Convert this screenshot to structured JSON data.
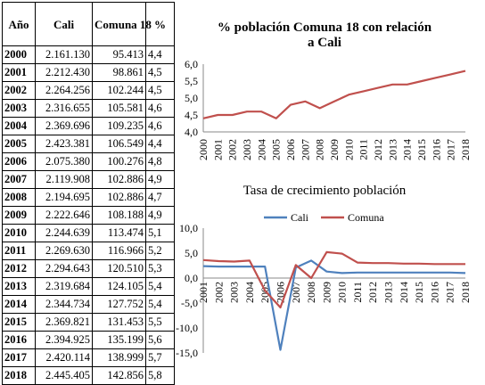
{
  "table": {
    "headers": [
      "Año",
      "Cali",
      "Comuna 18",
      "%"
    ],
    "rows": [
      [
        "2000",
        "2.161.130",
        "95.413",
        "4,4"
      ],
      [
        "2001",
        "2.212.430",
        "98.861",
        "4,5"
      ],
      [
        "2002",
        "2.264.256",
        "102.244",
        "4,5"
      ],
      [
        "2003",
        "2.316.655",
        "105.581",
        "4,6"
      ],
      [
        "2004",
        "2.369.696",
        "109.235",
        "4,6"
      ],
      [
        "2005",
        "2.423.381",
        "106.549",
        "4,4"
      ],
      [
        "2006",
        "2.075.380",
        "100.276",
        "4,8"
      ],
      [
        "2007",
        "2.119.908",
        "102.886",
        "4,9"
      ],
      [
        "2008",
        "2.194.695",
        "102.886",
        "4,7"
      ],
      [
        "2009",
        "2.222.646",
        "108.188",
        "4,9"
      ],
      [
        "2010",
        "2.244.639",
        "113.474",
        "5,1"
      ],
      [
        "2011",
        "2.269.630",
        "116.966",
        "5,2"
      ],
      [
        "2012",
        "2.294.643",
        "120.510",
        "5,3"
      ],
      [
        "2013",
        "2.319.684",
        "124.105",
        "5,4"
      ],
      [
        "2014",
        "2.344.734",
        "127.752",
        "5,4"
      ],
      [
        "2015",
        "2.369.821",
        "131.453",
        "5,5"
      ],
      [
        "2016",
        "2.394.925",
        "135.199",
        "5,6"
      ],
      [
        "2017",
        "2.420.114",
        "138.999",
        "5,7"
      ],
      [
        "2018",
        "2.445.405",
        "142.856",
        "5,8"
      ]
    ]
  },
  "chart_data": [
    {
      "type": "line",
      "title": "% población Comuna 18 con relación a Cali",
      "x": [
        "2000",
        "2001",
        "2002",
        "2003",
        "2004",
        "2005",
        "2006",
        "2007",
        "2008",
        "2009",
        "2010",
        "2011",
        "2012",
        "2013",
        "2014",
        "2015",
        "2016",
        "2017",
        "2018"
      ],
      "series": [
        {
          "values": [
            4.4,
            4.5,
            4.5,
            4.6,
            4.6,
            4.4,
            4.8,
            4.9,
            4.7,
            4.9,
            5.1,
            5.2,
            5.3,
            5.4,
            5.4,
            5.5,
            5.6,
            5.7,
            5.8
          ],
          "color": "#c0504d"
        }
      ],
      "ylim": [
        4.0,
        6.0
      ],
      "yticks": [
        "4,0",
        "4,5",
        "5,0",
        "5,5",
        "6,0"
      ],
      "grid": false,
      "legend": "none"
    },
    {
      "type": "line",
      "title": "Tasa de crecimiento población",
      "x": [
        "2001",
        "2002",
        "2003",
        "2004",
        "2005",
        "2006",
        "2007",
        "2008",
        "2009",
        "2010",
        "2011",
        "2012",
        "2013",
        "2014",
        "2015",
        "2016",
        "2017",
        "2018"
      ],
      "series": [
        {
          "name": "Cali",
          "color": "#4f81bd",
          "values": [
            2.4,
            2.3,
            2.3,
            2.3,
            2.3,
            -14.4,
            2.1,
            3.5,
            1.3,
            1.0,
            1.1,
            1.1,
            1.1,
            1.1,
            1.1,
            1.1,
            1.1,
            1.0
          ]
        },
        {
          "name": "Comuna",
          "color": "#c0504d",
          "values": [
            3.6,
            3.4,
            3.3,
            3.5,
            -2.5,
            -5.9,
            2.6,
            0.0,
            5.2,
            4.9,
            3.1,
            3.0,
            3.0,
            2.9,
            2.9,
            2.8,
            2.8,
            2.8
          ]
        }
      ],
      "ylim": [
        -15.0,
        10.0
      ],
      "yticks": [
        "-15,0",
        "-10,0",
        "-5,0",
        "0,0",
        "5,0",
        "10,0"
      ],
      "grid": false,
      "legend": "top"
    }
  ]
}
